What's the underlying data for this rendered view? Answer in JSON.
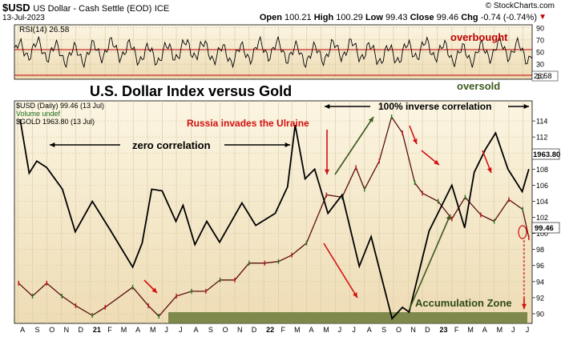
{
  "header": {
    "symbol": "$USD",
    "description": "US Dollar - Cash Settle (EOD)",
    "exchange": "ICE",
    "date": "13-Jul-2023",
    "credit": "© StockCharts.com",
    "ohlc": {
      "open_label": "Open",
      "open": "100.21",
      "high_label": "High",
      "high": "100.29",
      "low_label": "Low",
      "low": "99.43",
      "close_label": "Close",
      "close": "99.46",
      "chg_label": "Chg",
      "chg": "-0.74 (-0.74%)"
    }
  },
  "rsi_panel": {
    "legend": "RSI(14) 26.58",
    "current_value": "26.58",
    "levels": [
      90,
      70,
      50,
      30,
      10
    ],
    "overbought_label": "overbought",
    "oversold_label": "oversold"
  },
  "chart_data": {
    "type": "line",
    "title": "U.S. Dollar Index versus Gold",
    "legend": [
      "$USD (Daily) 99.46 (13 Jul)",
      "Volume undef",
      "$GOLD 1963.80 (13 Jul)"
    ],
    "x_ticks": [
      "A",
      "S",
      "O",
      "N",
      "D",
      "21",
      "F",
      "M",
      "A",
      "M",
      "J",
      "J",
      "A",
      "S",
      "O",
      "N",
      "D",
      "22",
      "F",
      "M",
      "A",
      "M",
      "J",
      "J",
      "A",
      "S",
      "O",
      "N",
      "D",
      "23",
      "F",
      "M",
      "A",
      "M",
      "J",
      "J"
    ],
    "y_ticks": [
      90,
      92,
      94,
      96,
      98,
      100,
      102,
      104,
      106,
      108,
      110,
      112,
      114
    ],
    "ylim": [
      88.8,
      116.5
    ],
    "series": [
      {
        "name": "$USD",
        "color": "#5a0f0f",
        "x": [
          "2020-08-03",
          "2020-09-01",
          "2020-10-01",
          "2020-11-02",
          "2020-12-01",
          "2021-01-05",
          "2021-02-01",
          "2021-03-31",
          "2021-05-03",
          "2021-05-25",
          "2021-07-01",
          "2021-08-02",
          "2021-09-01",
          "2021-10-01",
          "2021-11-01",
          "2021-12-01",
          "2022-01-03",
          "2022-02-01",
          "2022-03-01",
          "2022-04-01",
          "2022-05-13",
          "2022-06-15",
          "2022-07-14",
          "2022-08-01",
          "2022-09-01",
          "2022-09-27",
          "2022-10-20",
          "2022-11-15",
          "2022-12-01",
          "2023-01-03",
          "2023-02-01",
          "2023-03-01",
          "2023-04-03",
          "2023-05-01",
          "2023-06-01",
          "2023-06-30",
          "2023-07-13"
        ],
        "y": [
          93.8,
          92.2,
          93.8,
          92.2,
          91.0,
          89.8,
          90.8,
          93.3,
          91.0,
          89.7,
          92.2,
          92.8,
          92.8,
          94.2,
          94.2,
          96.3,
          96.3,
          96.5,
          97.3,
          98.8,
          104.8,
          104.5,
          108.2,
          105.5,
          109.0,
          114.5,
          112.5,
          106.3,
          105.0,
          104.0,
          101.8,
          104.5,
          102.3,
          101.5,
          104.2,
          103.0,
          99.46
        ]
      },
      {
        "name": "$GOLD",
        "color": "#000000",
        "x": [
          "2020-08-06",
          "2020-08-25",
          "2020-09-10",
          "2020-10-01",
          "2020-11-03",
          "2020-11-30",
          "2021-01-05",
          "2021-02-10",
          "2021-03-31",
          "2021-04-20",
          "2021-05-10",
          "2021-06-01",
          "2021-06-30",
          "2021-07-15",
          "2021-08-09",
          "2021-09-03",
          "2021-09-30",
          "2021-11-16",
          "2021-12-15",
          "2022-01-25",
          "2022-02-20",
          "2022-03-08",
          "2022-03-29",
          "2022-04-18",
          "2022-05-16",
          "2022-06-15",
          "2022-07-21",
          "2022-08-15",
          "2022-09-28",
          "2022-10-20",
          "2022-11-03",
          "2022-12-15",
          "2023-02-01",
          "2023-02-28",
          "2023-03-20",
          "2023-04-13",
          "2023-05-04",
          "2023-05-30",
          "2023-06-29",
          "2023-07-13"
        ],
        "y": [
          114.2,
          107.5,
          109.0,
          108.2,
          105.5,
          100.2,
          104.0,
          100.6,
          95.8,
          98.8,
          105.5,
          105.3,
          101.5,
          103.5,
          98.6,
          101.5,
          98.9,
          103.8,
          101.0,
          102.5,
          105.8,
          113.5,
          106.8,
          108.0,
          102.5,
          104.8,
          95.9,
          99.6,
          89.4,
          90.8,
          90.2,
          100.3,
          106.0,
          100.7,
          107.6,
          110.5,
          112.5,
          108.0,
          105.2,
          108.0
        ]
      }
    ],
    "last_values": {
      "gold": "1963.80",
      "usd": "99.46"
    },
    "annotations": {
      "zero": "zero correlation",
      "russia": "Russia invades the Ulraine",
      "inverse": "100% inverse correlation",
      "accumulation": "Accumulation Zone"
    }
  }
}
